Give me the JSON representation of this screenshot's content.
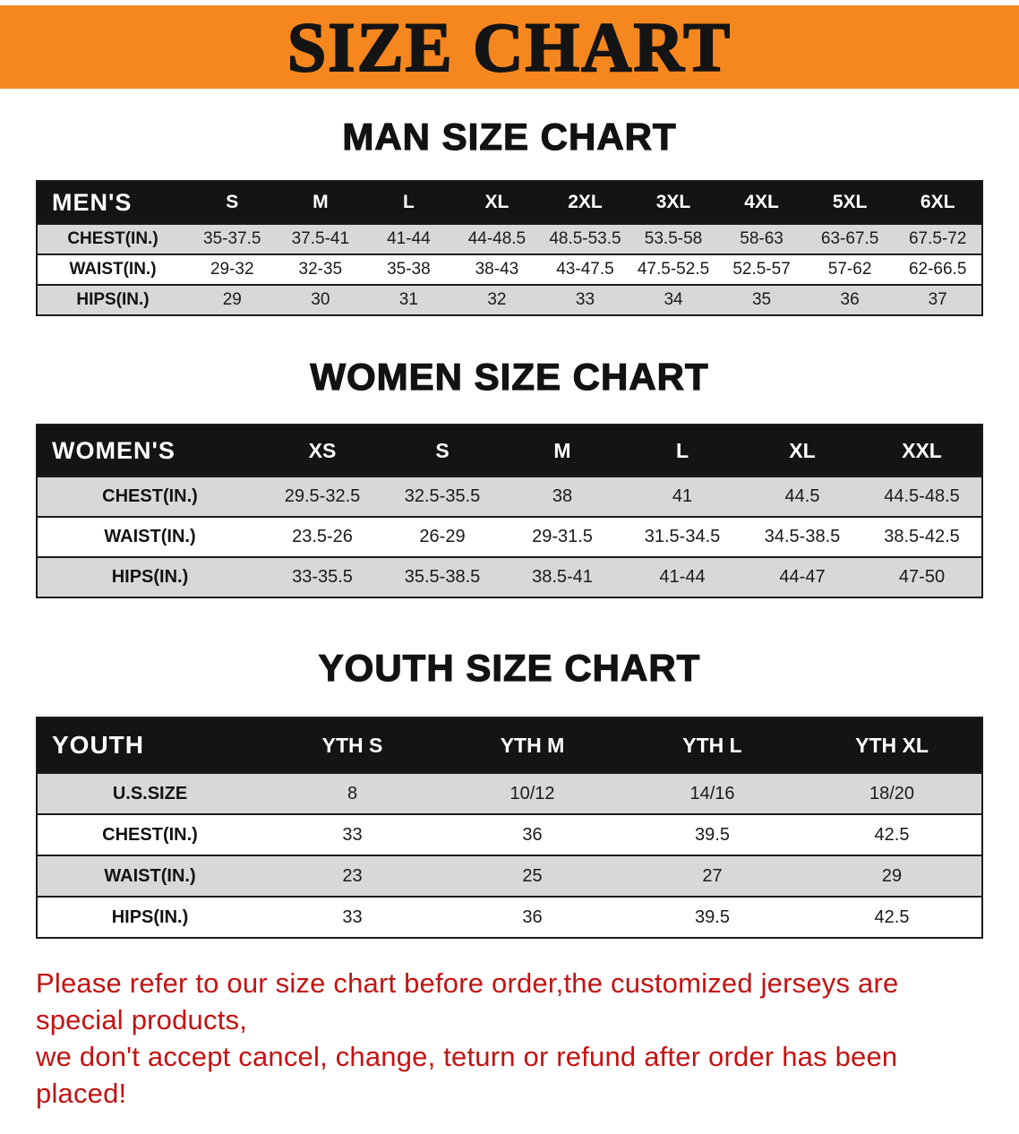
{
  "banner": {
    "title": "SIZE CHART"
  },
  "colors": {
    "banner_bg": "#f6871f",
    "header_bg": "#141414",
    "row_stripe": "#d8d8d8",
    "disclaimer_red": "#c41212"
  },
  "sections": [
    {
      "id": "men",
      "heading": "MAN SIZE CHART",
      "table": {
        "header": [
          "MEN'S",
          "S",
          "M",
          "L",
          "XL",
          "2XL",
          "3XL",
          "4XL",
          "5XL",
          "6XL"
        ],
        "rows": [
          [
            "CHEST(IN.)",
            "35-37.5",
            "37.5-41",
            "41-44",
            "44-48.5",
            "48.5-53.5",
            "53.5-58",
            "58-63",
            "63-67.5",
            "67.5-72"
          ],
          [
            "WAIST(IN.)",
            "29-32",
            "32-35",
            "35-38",
            "38-43",
            "43-47.5",
            "47.5-52.5",
            "52.5-57",
            "57-62",
            "62-66.5"
          ],
          [
            "HIPS(IN.)",
            "29",
            "30",
            "31",
            "32",
            "33",
            "34",
            "35",
            "36",
            "37"
          ]
        ]
      }
    },
    {
      "id": "women",
      "heading": "WOMEN SIZE CHART",
      "table": {
        "header": [
          "WOMEN'S",
          "XS",
          "S",
          "M",
          "L",
          "XL",
          "XXL"
        ],
        "rows": [
          [
            "CHEST(IN.)",
            "29.5-32.5",
            "32.5-35.5",
            "38",
            "41",
            "44.5",
            "44.5-48.5"
          ],
          [
            "WAIST(IN.)",
            "23.5-26",
            "26-29",
            "29-31.5",
            "31.5-34.5",
            "34.5-38.5",
            "38.5-42.5"
          ],
          [
            "HIPS(IN.)",
            "33-35.5",
            "35.5-38.5",
            "38.5-41",
            "41-44",
            "44-47",
            "47-50"
          ]
        ]
      }
    },
    {
      "id": "youth",
      "heading": "YOUTH SIZE CHART",
      "table": {
        "header": [
          "YOUTH",
          "YTH S",
          "YTH M",
          "YTH L",
          "YTH XL"
        ],
        "rows": [
          [
            "U.S.SIZE",
            "8",
            "10/12",
            "14/16",
            "18/20"
          ],
          [
            "CHEST(IN.)",
            "33",
            "36",
            "39.5",
            "42.5"
          ],
          [
            "WAIST(IN.)",
            "23",
            "25",
            "27",
            "29"
          ],
          [
            "HIPS(IN.)",
            "33",
            "36",
            "39.5",
            "42.5"
          ]
        ]
      }
    }
  ],
  "disclaimer": {
    "line1": "Please refer to our size chart before order,the customized jerseys are special products,",
    "line2": "we don't accept cancel, change, teturn or refund after order has been placed!"
  }
}
